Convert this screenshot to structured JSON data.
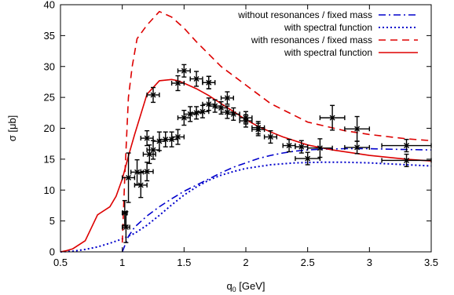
{
  "chart_data": {
    "type": "line",
    "title": "",
    "xlabel_main": "q",
    "xlabel_sub": "0",
    "xlabel_unit": " [GeV]",
    "ylabel": "σ [μb]",
    "xlim": [
      0.5,
      3.5
    ],
    "ylim": [
      0,
      40
    ],
    "xticks": [
      "0.5",
      "1",
      "1.5",
      "2",
      "2.5",
      "3",
      "3.5"
    ],
    "xtick_values": [
      0.5,
      1,
      1.5,
      2,
      2.5,
      3,
      3.5
    ],
    "yticks": [
      "0",
      "5",
      "10",
      "15",
      "20",
      "25",
      "30",
      "35",
      "40"
    ],
    "ytick_values": [
      0,
      5,
      10,
      15,
      20,
      25,
      30,
      35,
      40
    ],
    "grid": false,
    "legend_position": "top-right",
    "series": [
      {
        "name": "without resonances / fixed mass",
        "style": "dash-dot",
        "color": "#0000cc",
        "x": [
          1.0,
          1.05,
          1.1,
          1.2,
          1.3,
          1.4,
          1.5,
          1.6,
          1.7,
          1.8,
          1.9,
          2.0,
          2.1,
          2.2,
          2.3,
          2.4,
          2.5,
          2.6,
          2.8,
          3.0,
          3.2,
          3.5
        ],
        "y": [
          0.0,
          2.5,
          4.0,
          5.8,
          7.3,
          8.6,
          9.8,
          10.8,
          11.8,
          12.8,
          13.7,
          14.4,
          15.1,
          15.6,
          16.0,
          16.3,
          16.5,
          16.6,
          16.7,
          16.7,
          16.6,
          16.5
        ]
      },
      {
        "name": "with spectral function",
        "style": "dotted",
        "color": "#0000cc",
        "x": [
          0.5,
          0.6,
          0.7,
          0.8,
          0.9,
          1.0,
          1.1,
          1.2,
          1.3,
          1.4,
          1.5,
          1.6,
          1.7,
          1.8,
          1.9,
          2.0,
          2.2,
          2.4,
          2.6,
          2.8,
          3.0,
          3.2,
          3.5
        ],
        "y": [
          0.0,
          0.1,
          0.4,
          0.8,
          1.4,
          2.1,
          3.0,
          4.3,
          5.9,
          7.6,
          9.2,
          10.5,
          11.6,
          12.4,
          13.0,
          13.5,
          14.1,
          14.4,
          14.5,
          14.5,
          14.4,
          14.2,
          13.9
        ]
      },
      {
        "name": "with resonances / fixed mass",
        "style": "dashed",
        "color": "#dd0000",
        "x": [
          1.0,
          1.02,
          1.05,
          1.08,
          1.12,
          1.2,
          1.3,
          1.4,
          1.5,
          1.6,
          1.8,
          2.0,
          2.2,
          2.5,
          2.8,
          3.0,
          3.3,
          3.5
        ],
        "y": [
          1.5,
          12.0,
          25.0,
          30.0,
          34.5,
          36.7,
          38.9,
          38.0,
          36.2,
          34.0,
          30.0,
          27.0,
          24.0,
          21.0,
          19.6,
          19.0,
          18.3,
          18.0
        ]
      },
      {
        "name": "with spectral function",
        "style": "solid",
        "color": "#dd0000",
        "x": [
          0.5,
          0.55,
          0.6,
          0.7,
          0.8,
          0.9,
          0.95,
          1.0,
          1.05,
          1.1,
          1.2,
          1.3,
          1.4,
          1.45,
          1.5,
          1.6,
          1.7,
          1.8,
          1.9,
          2.0,
          2.1,
          2.2,
          2.3,
          2.5,
          2.7,
          3.0,
          3.3,
          3.5
        ],
        "y": [
          0.0,
          0.2,
          0.5,
          1.8,
          6.0,
          7.3,
          9.0,
          11.8,
          15.5,
          19.0,
          25.5,
          27.7,
          27.9,
          27.7,
          27.3,
          26.4,
          25.3,
          24.0,
          22.7,
          21.4,
          20.3,
          19.4,
          18.6,
          17.3,
          16.5,
          15.6,
          15.0,
          14.7
        ]
      }
    ],
    "data_points": {
      "marker": "cross",
      "color": "#000000",
      "x": [
        1.02,
        1.03,
        1.05,
        1.12,
        1.15,
        1.2,
        1.22,
        1.25,
        1.3,
        1.35,
        1.4,
        1.45,
        1.5,
        1.55,
        1.6,
        1.65,
        1.7,
        1.75,
        1.8,
        1.85,
        1.9,
        2.0,
        2.1,
        2.2,
        2.35,
        2.45,
        2.5,
        2.6,
        2.7,
        2.9,
        3.3,
        1.2,
        1.25,
        1.45,
        1.6,
        1.7,
        1.85,
        2.0,
        2.1
      ],
      "y": [
        6.3,
        4.0,
        12.0,
        12.9,
        10.8,
        13.0,
        15.8,
        16.5,
        17.9,
        18.2,
        18.2,
        18.6,
        21.7,
        22.3,
        22.5,
        22.7,
        23.9,
        23.6,
        23.3,
        22.6,
        22.3,
        21.2,
        19.8,
        18.6,
        17.2,
        17.0,
        15.1,
        16.8,
        21.7,
        19.9,
        14.8,
        18.4,
        25.4,
        27.3,
        28.0,
        27.4,
        24.9,
        21.7,
        20.1
      ],
      "xerr": [
        0.02,
        0.03,
        0.05,
        0.05,
        0.05,
        0.05,
        0.05,
        0.05,
        0.05,
        0.05,
        0.05,
        0.05,
        0.05,
        0.05,
        0.05,
        0.05,
        0.05,
        0.05,
        0.05,
        0.05,
        0.05,
        0.05,
        0.05,
        0.05,
        0.05,
        0.05,
        0.1,
        0.1,
        0.1,
        0.1,
        0.2,
        0.05,
        0.05,
        0.05,
        0.05,
        0.05,
        0.05,
        0.05,
        0.05
      ],
      "yerr": [
        2.0,
        2.5,
        4.0,
        2.0,
        2.0,
        1.5,
        1.5,
        1.5,
        1.5,
        1.2,
        1.2,
        1.2,
        1.2,
        1.2,
        1.0,
        1.0,
        1.0,
        1.0,
        1.0,
        1.0,
        1.0,
        1.0,
        1.0,
        1.0,
        1.0,
        1.0,
        1.0,
        1.5,
        2.0,
        2.0,
        1.0,
        1.2,
        1.2,
        1.2,
        1.2,
        1.0,
        1.0,
        1.0,
        1.0
      ]
    },
    "highlight_points": {
      "x": [
        1.5,
        1.7,
        2.9,
        3.3
      ],
      "y": [
        29.3,
        27.4,
        16.9,
        17.2
      ],
      "xerr": [
        0.05,
        0.05,
        0.1,
        0.2
      ],
      "yerr": [
        1.0,
        1.0,
        1.0,
        1.0
      ]
    }
  }
}
